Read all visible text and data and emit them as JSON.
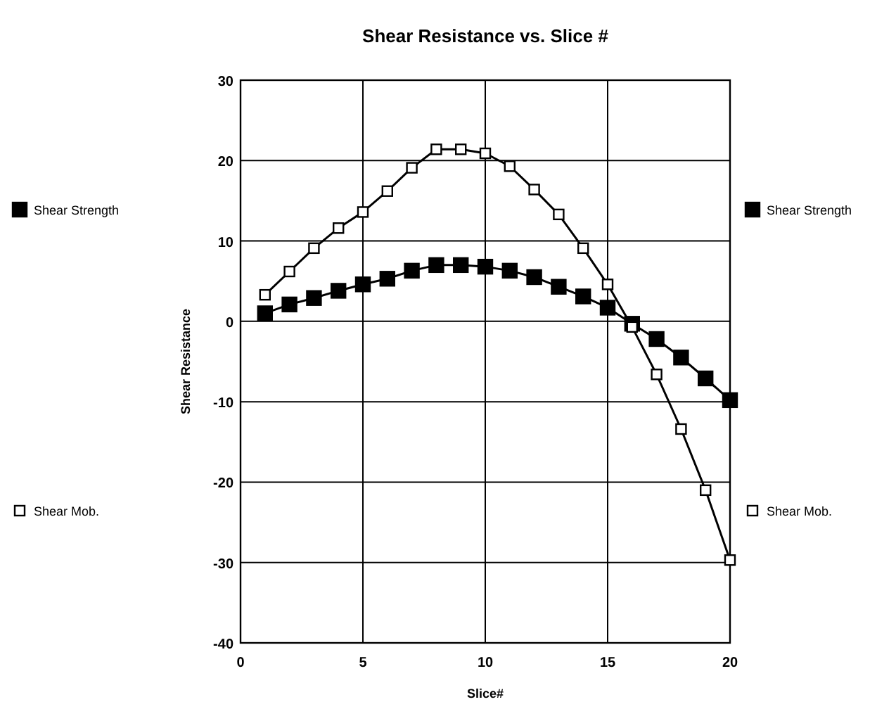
{
  "chart_data": {
    "type": "line",
    "title": "Shear Resistance vs. Slice #",
    "xlabel": "Slice#",
    "ylabel": "Shear Resistance",
    "x": [
      1,
      2,
      3,
      4,
      5,
      6,
      7,
      8,
      9,
      10,
      11,
      12,
      13,
      14,
      15,
      16,
      17,
      18,
      19,
      20
    ],
    "series": [
      {
        "name": "Shear Strength",
        "color": "#000000",
        "values": [
          1.0,
          2.1,
          2.9,
          3.8,
          4.6,
          5.3,
          6.3,
          7.0,
          7.0,
          6.8,
          6.3,
          5.5,
          4.3,
          3.1,
          1.7,
          -0.3,
          -2.2,
          -4.5,
          -7.1,
          -9.8
        ]
      },
      {
        "name": "Shear Mob.",
        "color": "#000000",
        "values": [
          3.3,
          6.2,
          9.1,
          11.6,
          13.6,
          16.2,
          19.1,
          21.4,
          21.4,
          20.9,
          19.3,
          16.4,
          13.3,
          9.1,
          4.6,
          -0.7,
          -6.6,
          -13.4,
          -21.0,
          -29.7
        ]
      }
    ],
    "xlim": [
      0,
      20
    ],
    "xticks": [
      0,
      5,
      10,
      15,
      20
    ],
    "ylim": [
      -40,
      30
    ],
    "yticks": [
      -40,
      -30,
      -20,
      -10,
      0,
      10,
      20,
      30
    ],
    "grid": true,
    "legend": "right",
    "marker": "square",
    "line_style": "solid"
  }
}
